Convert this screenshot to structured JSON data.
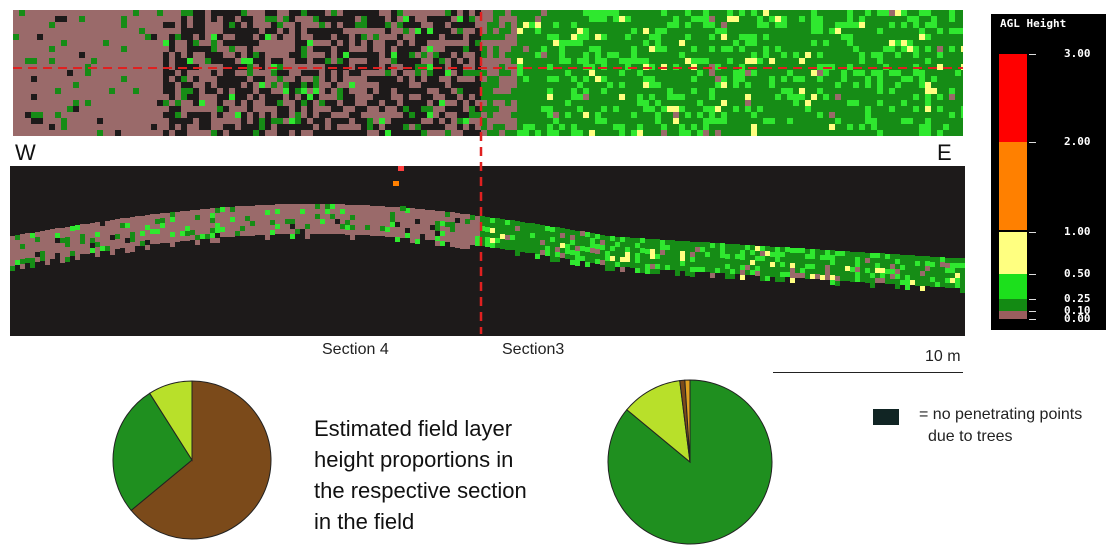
{
  "labels": {
    "west": "W",
    "east": "E",
    "section_left": "Section 4",
    "section_right": "Section3",
    "scale": "10 m"
  },
  "caption": {
    "lines": [
      "Estimated field layer",
      "height proportions in",
      "the respective section",
      "in the field"
    ]
  },
  "no_points_legend": {
    "line1": "= no penetrating points",
    "line2": "due to trees",
    "color": "#112524"
  },
  "colorbar": {
    "title": "AGL Height",
    "segments": [
      {
        "from": 2.0,
        "to": 3.0,
        "color": "#ff0000"
      },
      {
        "from": 1.0,
        "to": 2.0,
        "color": "#ff8000"
      },
      {
        "from": 0.5,
        "to": 1.0,
        "color": "#ffff80"
      },
      {
        "from": 0.25,
        "to": 0.5,
        "color": "#1ce01c"
      },
      {
        "from": 0.1,
        "to": 0.25,
        "color": "#138a13"
      },
      {
        "from": 0.0,
        "to": 0.1,
        "color": "#9a5e5e"
      }
    ],
    "tick_labels": [
      "3.00",
      "2.00",
      "1.00",
      "0.50",
      "0.25",
      "0.10",
      "0.00"
    ]
  },
  "colors": {
    "ground": "#9a6a6a",
    "low_veg": "#168c16",
    "bright_veg": "#2fe82f",
    "background": "#1d1a1a",
    "section_line": "#e02020"
  },
  "chart_data": [
    {
      "type": "pie",
      "title": "",
      "section": "Section 4",
      "slices": [
        {
          "value": 64,
          "color": "#7b4a1a"
        },
        {
          "value": 27,
          "color": "#1f8f1f"
        },
        {
          "value": 9,
          "color": "#b8e02a"
        }
      ]
    },
    {
      "type": "pie",
      "title": "",
      "section": "Section3",
      "slices": [
        {
          "value": 86,
          "color": "#1f8f1f"
        },
        {
          "value": 12,
          "color": "#b8e02a"
        },
        {
          "value": 1,
          "color": "#7b4a1a"
        },
        {
          "value": 1,
          "color": "#e0a020"
        }
      ]
    }
  ]
}
